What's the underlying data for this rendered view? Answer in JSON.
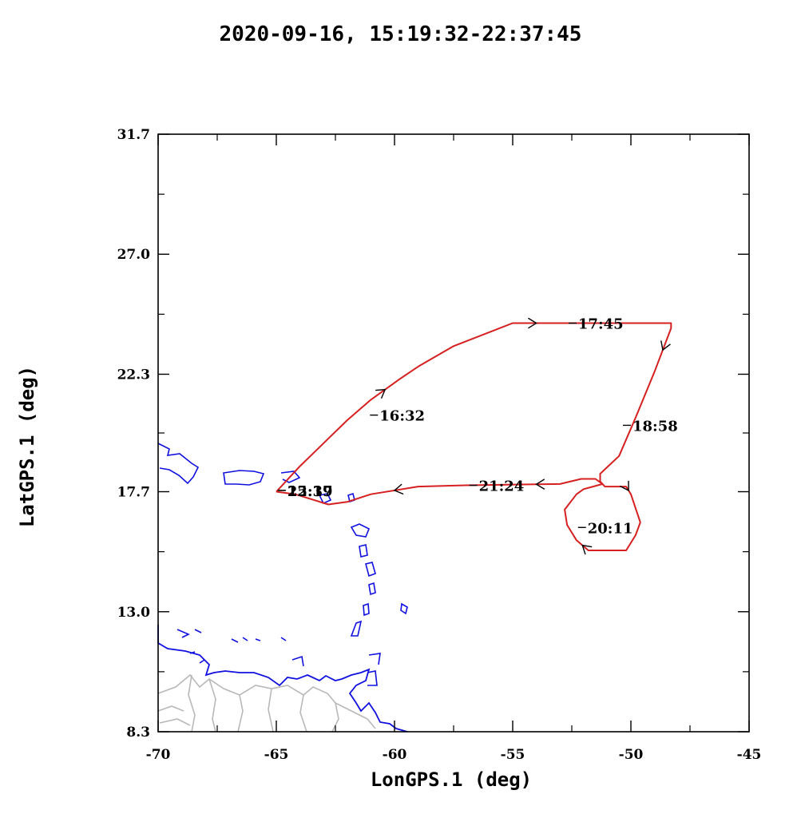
{
  "chart_data": {
    "type": "line",
    "title": "2020-09-16, 15:19:32-22:37:45",
    "xlabel": "LonGPS.1  (deg)",
    "ylabel": "LatGPS.1  (deg)",
    "xlim": [
      -70,
      -45
    ],
    "ylim": [
      8.3,
      31.7
    ],
    "x_ticks": [
      -70,
      -65,
      -60,
      -55,
      -50,
      -45
    ],
    "y_ticks": [
      8.3,
      13.0,
      17.7,
      22.3,
      27.0,
      31.7
    ],
    "x_tick_labels": [
      "-70",
      "-65",
      "-60",
      "-55",
      "-50",
      "-45"
    ],
    "y_tick_labels": [
      "8.3",
      "13.0",
      "17.7",
      "22.3",
      "27.0",
      "31.7"
    ],
    "grid": false,
    "series": [
      {
        "color": "#d62020",
        "x": [
          -65.0,
          -64.0,
          -63.0,
          -62.0,
          -61.0,
          -59.8,
          -59.0,
          -57.5,
          -55.0,
          -53.0,
          -48.3,
          -48.3,
          -49.0,
          -49.8,
          -50.5,
          -51.3,
          -51.3,
          -51.1,
          -50.2,
          -50.0,
          -49.6,
          -49.8,
          -50.2,
          -51.2,
          -51.8,
          -52.3,
          -52.7,
          -52.8,
          -52.3,
          -52.0,
          -51.6,
          -51.2,
          -51.5,
          -52.1,
          -53.0,
          -55.0,
          -57.0,
          -59.0,
          -61.0,
          -62.0,
          -62.8,
          -63.5,
          -64.2,
          -65.0
        ],
        "y": [
          17.7,
          18.7,
          19.6,
          20.5,
          21.3,
          22.1,
          22.6,
          23.4,
          24.3,
          24.3,
          24.3,
          24.1,
          22.4,
          20.6,
          19.1,
          18.4,
          18.1,
          17.9,
          17.9,
          17.6,
          16.5,
          16.0,
          15.4,
          15.4,
          15.4,
          15.8,
          16.4,
          17.0,
          17.6,
          17.8,
          17.9,
          18.0,
          18.2,
          18.2,
          18.0,
          17.98,
          17.95,
          17.9,
          17.6,
          17.3,
          17.2,
          17.4,
          17.6,
          17.7
        ]
      }
    ],
    "time_labels": [
      {
        "text": "16:32",
        "x": -60.7,
        "y": 20.7
      },
      {
        "text": "17:45",
        "x": -52.3,
        "y": 24.3
      },
      {
        "text": "18:58",
        "x": -50.0,
        "y": 20.3
      },
      {
        "text": "20:11",
        "x": -51.9,
        "y": 16.3
      },
      {
        "text": "21:24",
        "x": -56.5,
        "y": 17.95
      },
      {
        "text": "22:37",
        "x": -64.6,
        "y": 17.75
      },
      {
        "text": "15:19",
        "x": -64.6,
        "y": 17.75
      }
    ],
    "background_layers": [
      "coastline (blue)",
      "borders (gray)"
    ]
  },
  "colors": {
    "track": "#d62020",
    "coast": "#1010e0",
    "borders": "#b8b8b8",
    "axes": "#000000"
  }
}
